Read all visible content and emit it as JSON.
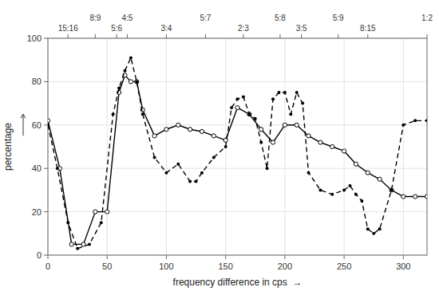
{
  "chart_data": {
    "type": "line",
    "xlabel": "frequency difference in cps  →",
    "ylabel": "percentage",
    "xlim": [
      0,
      320
    ],
    "ylim": [
      0,
      100
    ],
    "xticks": [
      0,
      50,
      100,
      150,
      200,
      250,
      300
    ],
    "yticks": [
      0,
      20,
      40,
      60,
      80,
      100
    ],
    "x2lim": [
      0,
      320
    ],
    "x2ticks": [
      {
        "value": 17,
        "label": "15:16"
      },
      {
        "value": 40,
        "label": "8:9"
      },
      {
        "value": 58,
        "label": "5:6"
      },
      {
        "value": 67,
        "label": "4:5"
      },
      {
        "value": 100,
        "label": "3:4"
      },
      {
        "value": 133,
        "label": "5:7"
      },
      {
        "value": 165,
        "label": "2:3"
      },
      {
        "value": 196,
        "label": "5:8"
      },
      {
        "value": 214,
        "label": "3:5"
      },
      {
        "value": 245,
        "label": "5:9"
      },
      {
        "value": 270,
        "label": "8:15"
      },
      {
        "value": 320,
        "label": "1:2"
      }
    ],
    "grid": true,
    "series": [
      {
        "color": "black",
        "line_style": "solid",
        "marker": "circle",
        "x": [
          0,
          10,
          20,
          30,
          40,
          50,
          60,
          65,
          70,
          75,
          80,
          90,
          100,
          110,
          120,
          130,
          140,
          150,
          160,
          170,
          180,
          190,
          200,
          210,
          220,
          230,
          240,
          250,
          260,
          270,
          280,
          290,
          300,
          310,
          320
        ],
        "values": [
          62,
          40,
          5,
          5,
          20,
          20,
          75,
          83,
          80,
          80,
          67,
          55,
          58,
          60,
          58,
          57,
          55,
          53,
          68,
          65,
          58,
          52,
          60,
          60,
          55,
          52,
          50,
          48,
          42,
          38,
          35,
          30,
          27,
          27,
          27
        ]
      },
      {
        "color": "black",
        "line_style": "dashed",
        "marker": "dot",
        "x": [
          0,
          8,
          17,
          25,
          35,
          45,
          55,
          60,
          65,
          70,
          75,
          80,
          90,
          100,
          110,
          120,
          125,
          130,
          140,
          150,
          155,
          160,
          165,
          170,
          175,
          180,
          185,
          190,
          195,
          200,
          205,
          210,
          215,
          220,
          230,
          240,
          250,
          255,
          260,
          265,
          270,
          275,
          280,
          290,
          300,
          310,
          320
        ],
        "values": [
          60,
          40,
          15,
          3,
          5,
          15,
          65,
          77,
          85,
          91,
          80,
          65,
          45,
          38,
          42,
          34,
          34,
          38,
          45,
          50,
          68,
          72,
          73,
          65,
          63,
          52,
          40,
          72,
          75,
          75,
          65,
          75,
          70,
          38,
          30,
          28,
          30,
          32,
          28,
          25,
          12,
          10,
          12,
          30,
          60,
          62,
          62
        ]
      }
    ]
  }
}
